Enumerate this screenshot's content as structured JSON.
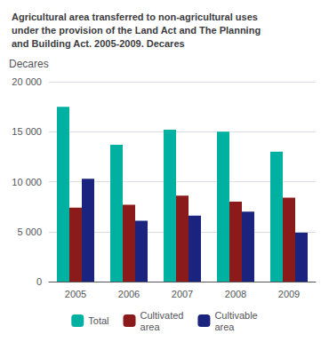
{
  "chart_data": {
    "type": "bar",
    "title": "Agricultural area transferred to non-agricultural uses\nunder the provision of the Land Act and The Planning\nand Building Act. 2005-2009. Decares",
    "ylabel": "Decares",
    "categories": [
      "2005",
      "2006",
      "2007",
      "2008",
      "2009"
    ],
    "series": [
      {
        "name": "Total",
        "color": "#00B0A0",
        "values": [
          17500,
          13700,
          15200,
          15000,
          13000
        ]
      },
      {
        "name": "Cultivated\narea",
        "color": "#8B1A1A",
        "values": [
          7400,
          7700,
          8600,
          8000,
          8400
        ]
      },
      {
        "name": "Cultivable\narea",
        "color": "#1A237E",
        "values": [
          10300,
          6100,
          6600,
          7000,
          4900
        ]
      }
    ],
    "ylim": [
      0,
      20000
    ],
    "yticks": [
      0,
      {
        "value": 5000,
        "label": "5 000"
      },
      {
        "value": 10000,
        "label": "10 000"
      },
      {
        "value": 15000,
        "label": "15 000"
      },
      {
        "value": 20000,
        "label": "20 000"
      }
    ],
    "grid": true,
    "legend": "bottom"
  }
}
